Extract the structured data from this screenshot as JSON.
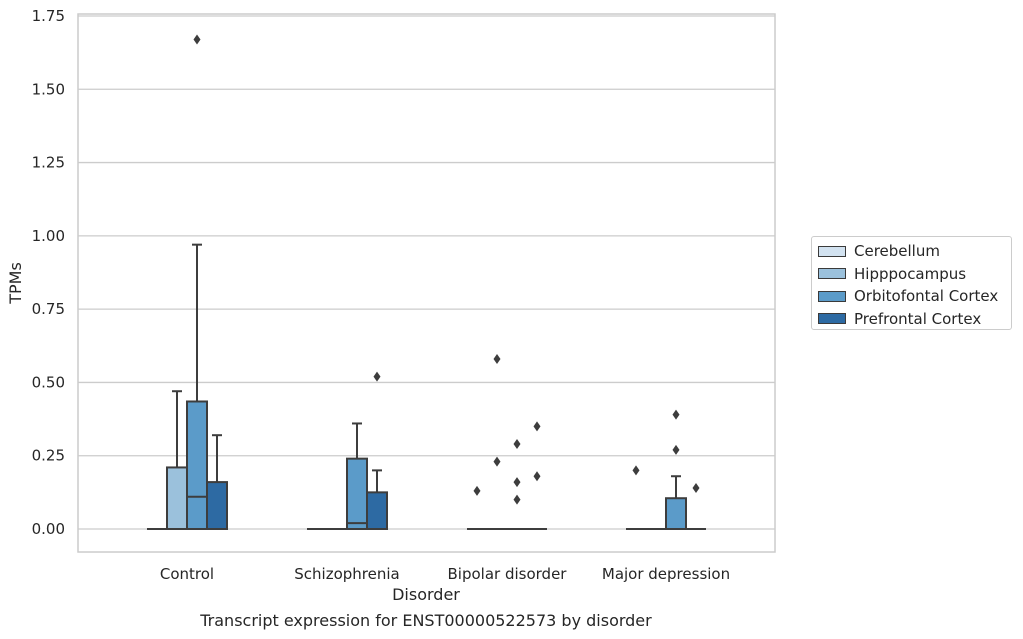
{
  "chart_data": {
    "type": "box",
    "title": "",
    "caption": "Transcript expression for ENST00000522573 by disorder",
    "xlabel": "Disorder",
    "ylabel": "TPMs",
    "ylim": [
      -0.08,
      1.76
    ],
    "yticks": [
      "0.00",
      "0.25",
      "0.50",
      "0.75",
      "1.00",
      "1.25",
      "1.50",
      "1.75"
    ],
    "ytick_values": [
      0,
      0.25,
      0.5,
      0.75,
      1.0,
      1.25,
      1.5,
      1.75
    ],
    "grid": true,
    "legend_position": "right",
    "categories": [
      "Control",
      "Schizophrenia",
      "Bipolar disorder",
      "Major depression"
    ],
    "series": [
      {
        "name": "Cerebellum",
        "color": "#d2e2f0",
        "boxes": [
          {
            "q1": 0,
            "median": 0,
            "q3": 0,
            "whislo": 0,
            "whishi": 0,
            "fliers": []
          },
          {
            "q1": 0,
            "median": 0,
            "q3": 0,
            "whislo": 0,
            "whishi": 0,
            "fliers": []
          },
          {
            "q1": 0,
            "median": 0,
            "q3": 0,
            "whislo": 0,
            "whishi": 0,
            "fliers": [
              0.13
            ]
          },
          {
            "q1": 0,
            "median": 0,
            "q3": 0,
            "whislo": 0,
            "whishi": 0,
            "fliers": [
              0.2
            ]
          }
        ]
      },
      {
        "name": "Hipppocampus",
        "color": "#9bc1dc",
        "boxes": [
          {
            "q1": 0,
            "median": 0,
            "q3": 0.21,
            "whislo": 0,
            "whishi": 0.47,
            "fliers": []
          },
          {
            "q1": 0,
            "median": 0,
            "q3": 0,
            "whislo": 0,
            "whishi": 0,
            "fliers": []
          },
          {
            "q1": 0,
            "median": 0,
            "q3": 0,
            "whislo": 0,
            "whishi": 0,
            "fliers": [
              0.23,
              0.58
            ]
          },
          {
            "q1": 0,
            "median": 0,
            "q3": 0,
            "whislo": 0,
            "whishi": 0,
            "fliers": []
          }
        ]
      },
      {
        "name": "Orbitofontal Cortex",
        "color": "#5b9bc9",
        "boxes": [
          {
            "q1": 0,
            "median": 0.11,
            "q3": 0.435,
            "whislo": 0,
            "whishi": 0.97,
            "fliers": [
              1.67
            ]
          },
          {
            "q1": 0,
            "median": 0.02,
            "q3": 0.24,
            "whislo": 0,
            "whishi": 0.36,
            "fliers": []
          },
          {
            "q1": 0,
            "median": 0,
            "q3": 0,
            "whislo": 0,
            "whishi": 0,
            "fliers": [
              0.1,
              0.16,
              0.29
            ]
          },
          {
            "q1": 0,
            "median": 0,
            "q3": 0.105,
            "whislo": 0,
            "whishi": 0.18,
            "fliers": [
              0.27,
              0.39
            ]
          }
        ]
      },
      {
        "name": "Prefrontal Cortex",
        "color": "#2d6aa3",
        "boxes": [
          {
            "q1": 0,
            "median": 0,
            "q3": 0.16,
            "whislo": 0,
            "whishi": 0.32,
            "fliers": []
          },
          {
            "q1": 0,
            "median": 0,
            "q3": 0.125,
            "whislo": 0,
            "whishi": 0.2,
            "fliers": [
              0.52
            ]
          },
          {
            "q1": 0,
            "median": 0,
            "q3": 0,
            "whislo": 0,
            "whishi": 0,
            "fliers": [
              0.18,
              0.35
            ]
          },
          {
            "q1": 0,
            "median": 0,
            "q3": 0,
            "whislo": 0,
            "whishi": 0,
            "fliers": [
              0.14
            ]
          }
        ]
      }
    ]
  }
}
